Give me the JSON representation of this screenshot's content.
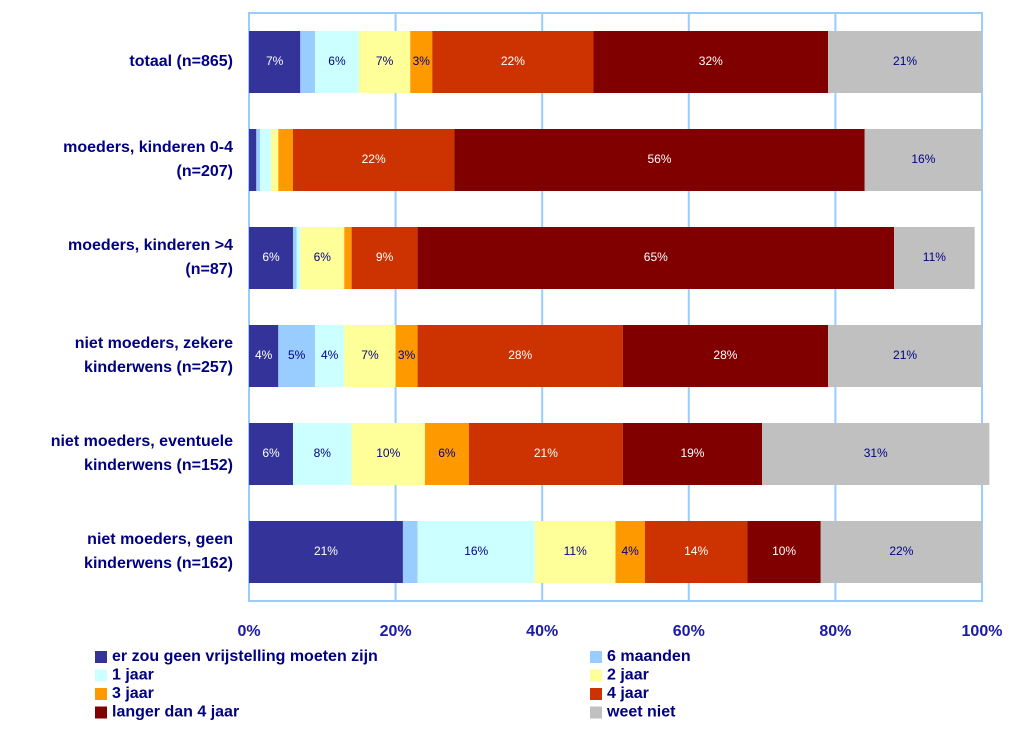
{
  "chart_data": {
    "type": "stacked-barh",
    "categories": [
      [
        "totaal (n=865)"
      ],
      [
        "moeders, kinderen 0-4",
        "(n=207)"
      ],
      [
        "moeders, kinderen >4",
        "(n=87)"
      ],
      [
        "niet moeders, zekere",
        "kinderwens (n=257)"
      ],
      [
        "niet moeders, eventuele",
        "kinderwens (n=152)"
      ],
      [
        "niet moeders, geen",
        "kinderwens (n=162)"
      ]
    ],
    "series": [
      {
        "name": "er zou geen vrijstelling moeten zijn",
        "color": "#333399",
        "label_color": "#ffffff",
        "values": [
          7,
          1,
          6,
          4,
          6,
          21
        ],
        "value_labels": [
          "7%",
          null,
          "6%",
          "4%",
          "6%",
          "21%"
        ]
      },
      {
        "name": "6 maanden",
        "color": "#99ccff",
        "label_color": "#000080",
        "values": [
          2,
          0.5,
          0.5,
          5,
          0,
          2
        ],
        "value_labels": [
          null,
          null,
          null,
          "5%",
          null,
          null
        ]
      },
      {
        "name": "1 jaar",
        "color": "#ccffff",
        "label_color": "#000080",
        "values": [
          6,
          1.5,
          0.5,
          4,
          8,
          16
        ],
        "value_labels": [
          "6%",
          null,
          null,
          "4%",
          "8%",
          "16%"
        ]
      },
      {
        "name": "2 jaar",
        "color": "#ffff99",
        "label_color": "#000080",
        "values": [
          7,
          1,
          6,
          7,
          10,
          11
        ],
        "value_labels": [
          "7%",
          null,
          "6%",
          "7%",
          "10%",
          "11%"
        ]
      },
      {
        "name": "3 jaar",
        "color": "#ff9900",
        "label_color": "#000080",
        "values": [
          3,
          2,
          1,
          3,
          6,
          4
        ],
        "value_labels": [
          "3%",
          null,
          null,
          "3%",
          "6%",
          "4%"
        ]
      },
      {
        "name": "4 jaar",
        "color": "#cc3300",
        "label_color": "#ffffff",
        "values": [
          22,
          22,
          9,
          28,
          21,
          14
        ],
        "value_labels": [
          "22%",
          "22%",
          "9%",
          "28%",
          "21%",
          "14%"
        ]
      },
      {
        "name": "langer dan 4 jaar",
        "color": "#800000",
        "label_color": "#ffffff",
        "values": [
          32,
          56,
          65,
          28,
          19,
          10
        ],
        "value_labels": [
          "32%",
          "56%",
          "65%",
          "28%",
          "19%",
          "10%"
        ]
      },
      {
        "name": "weet niet",
        "color": "#c0c0c0",
        "label_color": "#000080",
        "values": [
          21,
          16,
          11,
          21,
          31,
          22
        ],
        "value_labels": [
          "21%",
          "16%",
          "11%",
          "21%",
          "31%",
          "22%"
        ]
      }
    ],
    "xlim": [
      0,
      100
    ],
    "xticks": [
      {
        "value": 0,
        "label": "0%"
      },
      {
        "value": 20,
        "label": "20%"
      },
      {
        "value": 40,
        "label": "40%"
      },
      {
        "value": 60,
        "label": "60%"
      },
      {
        "value": 80,
        "label": "80%"
      },
      {
        "value": 100,
        "label": "100%"
      }
    ],
    "grid": true,
    "grid_color": "#99ccff"
  }
}
